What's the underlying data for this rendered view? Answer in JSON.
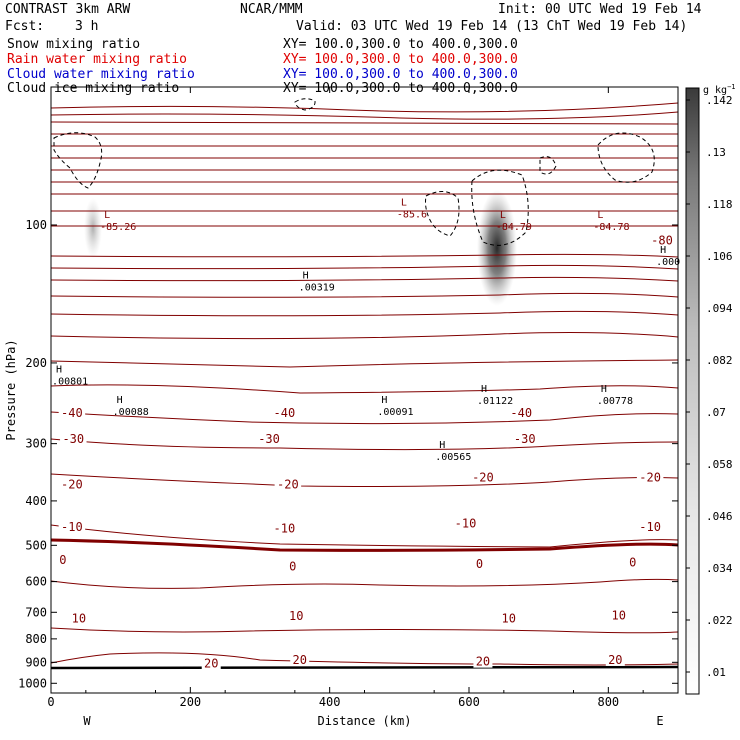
{
  "header": {
    "model": "CONTRAST  3km ARW",
    "org": "NCAR/MMM",
    "init": "Init: 00 UTC Wed 19 Feb 14",
    "fcst_label": "Fcst:",
    "fcst_value": "3 h",
    "valid": "Valid: 03 UTC Wed 19 Feb 14 (13 ChT Wed 19 Feb 14)"
  },
  "fields": [
    {
      "name": "Snow mixing ratio",
      "xy": "XY= 100.0,300.0 to 400.0,300.0",
      "color": "#000000"
    },
    {
      "name": "Rain water mixing ratio",
      "xy": "XY= 100.0,300.0 to 400.0,300.0",
      "color": "#e00000"
    },
    {
      "name": "Cloud water mixing ratio",
      "xy": "XY= 100.0,300.0 to 400.0,300.0",
      "color": "#0000cc"
    },
    {
      "name": "Cloud ice mixing ratio",
      "xy": "XY= 100.0,300.0 to 400.0,300.0",
      "color": "#000000"
    }
  ],
  "colors": {
    "temperature_contour": "#800000",
    "ice_contour": "#000000",
    "shading": "#303030"
  },
  "chart_data": {
    "type": "heatmap",
    "xlabel": "Distance (km)",
    "ylabel": "Pressure (hPa)",
    "xlim": [
      0,
      900
    ],
    "ylim": [
      1050,
      50
    ],
    "yscale": "log",
    "x_ticks": [
      0,
      200,
      400,
      600,
      800
    ],
    "y_ticks": [
      100,
      200,
      300,
      400,
      500,
      600,
      700,
      800,
      900,
      1000
    ],
    "direction_labels": {
      "left": "W",
      "right": "E"
    },
    "colorbar": {
      "unit": "g kg",
      "unit_exp": "−1",
      "levels": [
        ".01",
        ".022",
        ".034",
        ".046",
        ".058",
        ".07",
        ".082",
        ".094",
        ".106",
        ".118",
        ".13",
        ".142"
      ]
    },
    "temperature_labels": [
      {
        "text": "-80",
        "x": 877,
        "p": 108
      },
      {
        "text": "-40",
        "x": 30,
        "p": 257
      },
      {
        "text": "-40",
        "x": 335,
        "p": 257
      },
      {
        "text": "-40",
        "x": 675,
        "p": 257
      },
      {
        "text": "-30",
        "x": 32,
        "p": 293
      },
      {
        "text": "-30",
        "x": 313,
        "p": 293
      },
      {
        "text": "-30",
        "x": 680,
        "p": 293
      },
      {
        "text": "-20",
        "x": 30,
        "p": 368
      },
      {
        "text": "-20",
        "x": 340,
        "p": 368
      },
      {
        "text": "-20",
        "x": 620,
        "p": 356
      },
      {
        "text": "-20",
        "x": 860,
        "p": 356
      },
      {
        "text": "-10",
        "x": 30,
        "p": 456
      },
      {
        "text": "-10",
        "x": 335,
        "p": 460
      },
      {
        "text": "-10",
        "x": 595,
        "p": 448
      },
      {
        "text": "-10",
        "x": 860,
        "p": 456
      },
      {
        "text": "0",
        "x": 17,
        "p": 538
      },
      {
        "text": "0",
        "x": 347,
        "p": 556
      },
      {
        "text": "0",
        "x": 615,
        "p": 549
      },
      {
        "text": "0",
        "x": 835,
        "p": 545
      },
      {
        "text": "10",
        "x": 40,
        "p": 722
      },
      {
        "text": "10",
        "x": 352,
        "p": 713
      },
      {
        "text": "10",
        "x": 657,
        "p": 722
      },
      {
        "text": "10",
        "x": 815,
        "p": 711
      },
      {
        "text": "20",
        "x": 230,
        "p": 906
      },
      {
        "text": "20",
        "x": 357,
        "p": 889
      },
      {
        "text": "20",
        "x": 620,
        "p": 897
      },
      {
        "text": "20",
        "x": 810,
        "p": 889
      }
    ],
    "extrema": [
      {
        "type": "L",
        "value": "-85.26",
        "x": 82,
        "p": 98
      },
      {
        "type": "L",
        "value": "-85.6",
        "x": 508,
        "p": 92
      },
      {
        "type": "L",
        "value": "-84.79",
        "x": 650,
        "p": 98
      },
      {
        "type": "L",
        "value": "-84.78",
        "x": 790,
        "p": 98
      },
      {
        "type": "H",
        "value": ".00319",
        "x": 367,
        "p": 133
      },
      {
        "type": "H",
        "value": ".000",
        "x": 880,
        "p": 117
      },
      {
        "type": "H",
        "value": ".00801",
        "x": 13,
        "p": 213
      },
      {
        "type": "H",
        "value": ".00088",
        "x": 100,
        "p": 248
      },
      {
        "type": "H",
        "value": ".00091",
        "x": 480,
        "p": 248
      },
      {
        "type": "H",
        "value": ".01122",
        "x": 623,
        "p": 235
      },
      {
        "type": "H",
        "value": ".00778",
        "x": 795,
        "p": 235
      },
      {
        "type": "H",
        "value": ".00565",
        "x": 563,
        "p": 311
      }
    ]
  }
}
